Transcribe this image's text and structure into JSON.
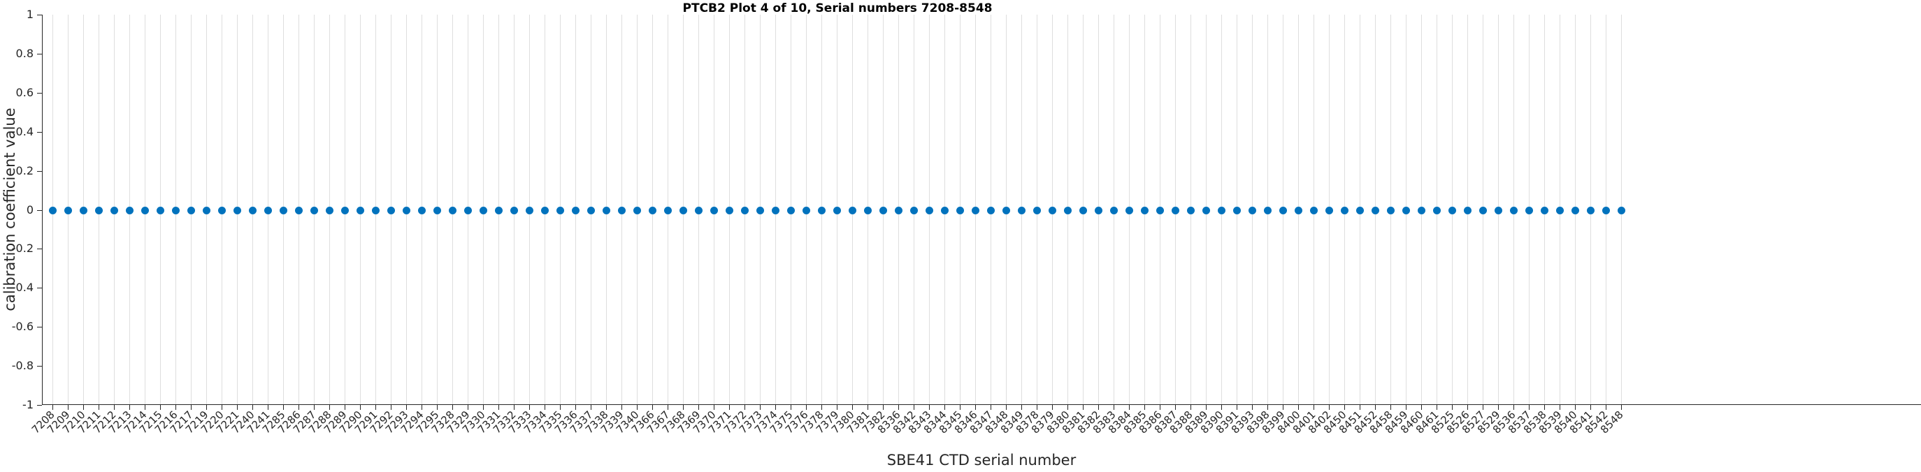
{
  "figure": {
    "title": "PTCB2 Plot 4 of 10, Serial numbers 7208-8548"
  },
  "chart_data": {
    "type": "scatter",
    "title": "PTCB2 Plot 4 of 10, Serial numbers 7208-8548",
    "xlabel": "SBE41 CTD serial number",
    "ylabel": "calibration coefficient value",
    "ylim": [
      -1,
      1
    ],
    "y_tick_labels": [
      "1",
      "0.8",
      "0.6",
      "0.4",
      "0.2",
      "0",
      "-0.2",
      "-0.4",
      "-0.6",
      "-0.8",
      "-1"
    ],
    "grid": "vertical-only",
    "legend": "none",
    "marker": "filled-circle",
    "marker_color": "#0072BD",
    "categories": [
      "7208",
      "7209",
      "7210",
      "7211",
      "7212",
      "7213",
      "7214",
      "7215",
      "7216",
      "7217",
      "7219",
      "7220",
      "7221",
      "7240",
      "7241",
      "7285",
      "7286",
      "7287",
      "7288",
      "7289",
      "7290",
      "7291",
      "7292",
      "7293",
      "7294",
      "7295",
      "7328",
      "7329",
      "7330",
      "7331",
      "7332",
      "7333",
      "7334",
      "7335",
      "7336",
      "7337",
      "7338",
      "7339",
      "7340",
      "7366",
      "7367",
      "7368",
      "7369",
      "7370",
      "7371",
      "7372",
      "7373",
      "7374",
      "7375",
      "7376",
      "7378",
      "7379",
      "7380",
      "7381",
      "7382",
      "8336",
      "8342",
      "8343",
      "8344",
      "8345",
      "8346",
      "8347",
      "8348",
      "8349",
      "8378",
      "8379",
      "8380",
      "8381",
      "8382",
      "8383",
      "8384",
      "8385",
      "8386",
      "8387",
      "8388",
      "8389",
      "8390",
      "8391",
      "8393",
      "8398",
      "8399",
      "8400",
      "8401",
      "8402",
      "8450",
      "8451",
      "8452",
      "8458",
      "8459",
      "8460",
      "8461",
      "8525",
      "8526",
      "8527",
      "8529",
      "8536",
      "8537",
      "8538",
      "8539",
      "8540",
      "8541",
      "8542",
      "8548"
    ],
    "values": [
      0,
      0,
      0,
      0,
      0,
      0,
      0,
      0,
      0,
      0,
      0,
      0,
      0,
      0,
      0,
      0,
      0,
      0,
      0,
      0,
      0,
      0,
      0,
      0,
      0,
      0,
      0,
      0,
      0,
      0,
      0,
      0,
      0,
      0,
      0,
      0,
      0,
      0,
      0,
      0,
      0,
      0,
      0,
      0,
      0,
      0,
      0,
      0,
      0,
      0,
      0,
      0,
      0,
      0,
      0,
      0,
      0,
      0,
      0,
      0,
      0,
      0,
      0,
      0,
      0,
      0,
      0,
      0,
      0,
      0,
      0,
      0,
      0,
      0,
      0,
      0,
      0,
      0,
      0,
      0,
      0,
      0,
      0,
      0,
      0,
      0,
      0,
      0,
      0,
      0,
      0,
      0,
      0,
      0,
      0,
      0,
      0,
      0,
      0,
      0,
      0,
      0,
      0
    ]
  }
}
